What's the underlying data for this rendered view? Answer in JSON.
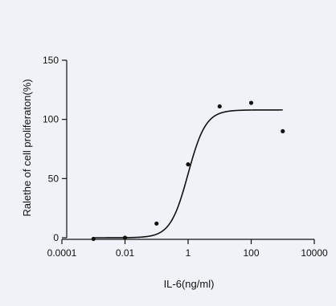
{
  "chart_data": {
    "type": "scatter",
    "title": "",
    "xlabel": "IL-6(ng/ml)",
    "ylabel": "Ralethe of cell proliferaton(%)",
    "x_scale": "log",
    "xlim": [
      0.0001,
      10000
    ],
    "ylim": [
      0,
      150
    ],
    "x_ticks": [
      0.0001,
      0.01,
      1,
      100,
      10000
    ],
    "x_tick_labels": [
      "0.0001",
      "0.01",
      "1",
      "100",
      "10000"
    ],
    "y_ticks": [
      0,
      50,
      100,
      150
    ],
    "y_tick_labels": [
      "0",
      "50",
      "100",
      "150"
    ],
    "grid": false,
    "legend": "none",
    "series": [
      {
        "x": [
          0.001,
          0.01,
          0.1,
          1,
          10,
          100,
          1000
        ],
        "y": [
          -1,
          0,
          12,
          62,
          111,
          114,
          90
        ]
      }
    ],
    "fit_curve": {
      "model": "sigmoidal dose-response",
      "bottom": 0,
      "top": 108,
      "ec50": 1,
      "hill_slope": 1.55,
      "x_range": [
        0.001,
        1000
      ]
    },
    "colors": {
      "background": "#f0f2f7",
      "axis": "#111111",
      "points": "#111111",
      "curve": "#111111"
    }
  }
}
